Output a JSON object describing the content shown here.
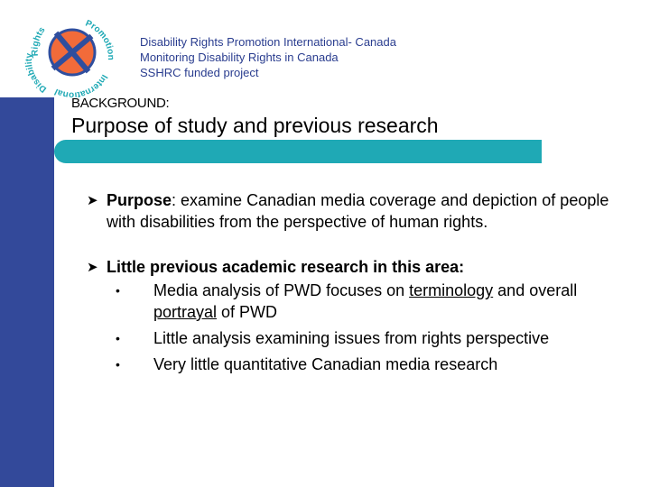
{
  "logo": {
    "ring_text_top": "Rights",
    "ring_text_right": "Promotion",
    "ring_text_bottom": "International",
    "ring_text_left": "Disability",
    "colors": {
      "cross": "#2f4e9e",
      "quadrant": "#f26b3a",
      "ring_text": "#1fa9b5"
    }
  },
  "header": {
    "line1": "Disability Rights Promotion International- Canada",
    "line2": "Monitoring Disability Rights in Canada",
    "line3": "SSHRC funded project"
  },
  "section_label": "BACKGROUND:",
  "title": "Purpose of study and previous research",
  "items": [
    {
      "bullet_icon": "arrow-bullet-icon",
      "lead": "Purpose",
      "text": ":  examine Canadian media coverage and depiction of people with disabilities from the perspective of human rights."
    },
    {
      "bullet_icon": "arrow-bullet-icon",
      "lead": "Little previous academic research in this area:",
      "subitems": [
        {
          "pre": "Media analysis of PWD focuses on ",
          "u1": "terminology",
          "mid": " and overall ",
          "u2": "portrayal",
          "post": " of PWD"
        },
        {
          "text": "Little analysis examining issues from rights perspective"
        },
        {
          "text": "Very little quantitative Canadian media research"
        }
      ]
    }
  ],
  "colors": {
    "left_bar": "#33499a",
    "teal_bar": "#1fa9b5",
    "header_text": "#2a3d8f"
  }
}
